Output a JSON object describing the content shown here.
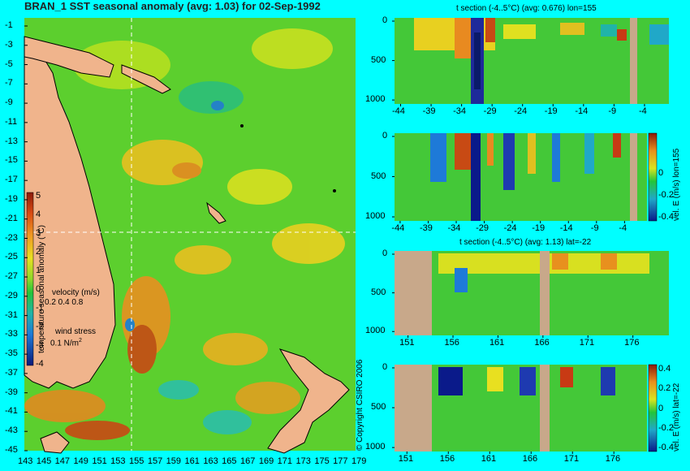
{
  "map": {
    "title": "BRAN_1  SST seasonal anomaly (avg: 1.03) for 02-Sep-1992",
    "lat_ticks": [
      "-1",
      "-3",
      "-5",
      "-7",
      "-9",
      "-11",
      "-13",
      "-15",
      "-17",
      "-19",
      "-21",
      "-23",
      "-25",
      "-27",
      "-29",
      "-31",
      "-33",
      "-35",
      "-37",
      "-39",
      "-41",
      "-43",
      "-45"
    ],
    "lon_ticks": [
      "143",
      "145",
      "147",
      "149",
      "151",
      "153",
      "155",
      "157",
      "159",
      "161",
      "163",
      "165",
      "167",
      "169",
      "171",
      "173",
      "175",
      "177",
      "179"
    ],
    "colorbar": {
      "label": "temperature seasonal anomaly (°C)",
      "ticks": [
        "5",
        "4",
        "3",
        "2",
        "1",
        "0",
        "-1",
        "-2",
        "-3",
        "-4"
      ]
    },
    "legend": {
      "velocity_title": "velocity (m/s)",
      "velocity_scale": "0.2 0.4 0.8",
      "wind_title": "wind stress",
      "wind_scale": "0.1 N/m",
      "wind_exp": "2"
    },
    "copyright": "© Copyright CSIRO 2006"
  },
  "panels": [
    {
      "title": "t section (-4..5°C) (avg: 0.676) lon=155",
      "y_ticks": [
        "0",
        "500",
        "1000"
      ],
      "x_ticks": [
        "-44",
        "-39",
        "-34",
        "-29",
        "-24",
        "-19",
        "-14",
        "-9",
        "-4"
      ],
      "side_label": ""
    },
    {
      "title": "",
      "y_ticks": [
        "0",
        "500",
        "1000"
      ],
      "x_ticks": [
        "-44",
        "-39",
        "-34",
        "-29",
        "-24",
        "-19",
        "-14",
        "-9",
        "-4"
      ],
      "side_label": "vel. E (m/s) lon=155",
      "cbar_ticks": [
        "0",
        "-0.2",
        "-0.4"
      ]
    },
    {
      "title": "t section (-4..5°C) (avg: 1.13) lat=-22",
      "y_ticks": [
        "0",
        "500",
        "1000"
      ],
      "x_ticks": [
        "151",
        "156",
        "161",
        "166",
        "171",
        "176"
      ],
      "side_label": ""
    },
    {
      "title": "",
      "y_ticks": [
        "0",
        "500",
        "1000"
      ],
      "x_ticks": [
        "151",
        "156",
        "161",
        "166",
        "171",
        "176"
      ],
      "side_label": "vel. E (m/s) lat=-22",
      "cbar_ticks": [
        "0.4",
        "0.2",
        "0",
        "-0.2",
        "-0.4"
      ]
    }
  ],
  "chart_data": [
    {
      "type": "heatmap",
      "title": "BRAN_1  SST seasonal anomaly (avg: 1.03) for 02-Sep-1992",
      "xlim": [
        142,
        180
      ],
      "ylim": [
        -45,
        0
      ],
      "colorbar_range": [
        -4,
        5
      ],
      "average": 1.03,
      "date": "02-Sep-1992",
      "crosshair": {
        "lon": 155,
        "lat": -22
      }
    },
    {
      "type": "heatmap",
      "title": "t section (-4..5°C) (avg: 0.676) lon=155",
      "xlim": [
        -45,
        0
      ],
      "ylim": [
        1050,
        0
      ],
      "x_ticks": [
        -44,
        -39,
        -34,
        -29,
        -24,
        -19,
        -14,
        -9,
        -4
      ],
      "y_ticks": [
        0,
        500,
        1000
      ],
      "average": 0.676
    },
    {
      "type": "heatmap",
      "title": "",
      "ylabel": "vel. E (m/s) lon=155",
      "xlim": [
        -45,
        0
      ],
      "ylim": [
        1050,
        0
      ],
      "colorbar_range": [
        -0.4,
        0.4
      ]
    },
    {
      "type": "heatmap",
      "title": "t section (-4..5°C) (avg: 1.13) lat=-22",
      "xlim": [
        149.5,
        180
      ],
      "ylim": [
        1050,
        0
      ],
      "x_ticks": [
        151,
        156,
        161,
        166,
        171,
        176
      ],
      "y_ticks": [
        0,
        500,
        1000
      ],
      "average": 1.13
    },
    {
      "type": "heatmap",
      "title": "",
      "ylabel": "vel. E (m/s) lat=-22",
      "xlim": [
        149.5,
        180
      ],
      "ylim": [
        1050,
        0
      ],
      "colorbar_range": [
        -0.4,
        0.4
      ]
    }
  ]
}
